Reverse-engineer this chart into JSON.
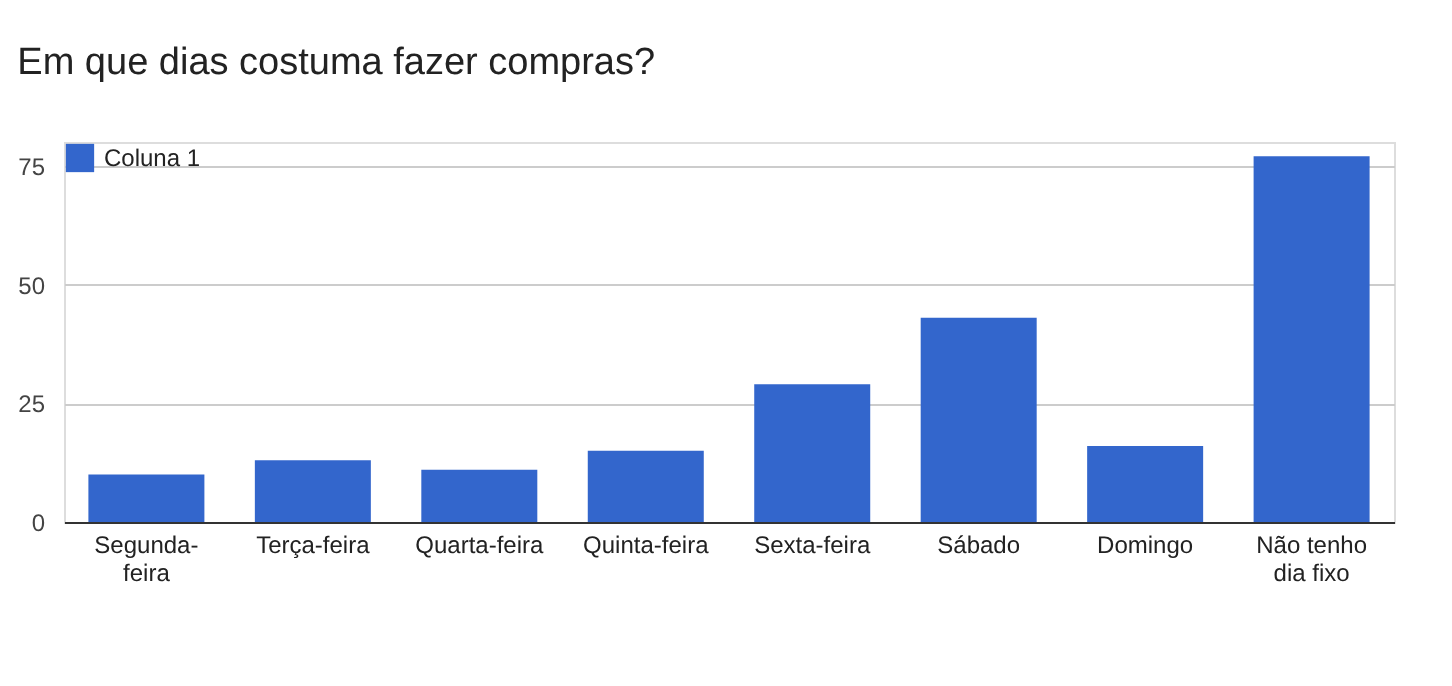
{
  "chart_data": {
    "type": "bar",
    "title": "Em que dias costuma fazer compras?",
    "categories": [
      "Segunda-feira",
      "Terça-feira",
      "Quarta-feira",
      "Quinta-feira",
      "Sexta-feira",
      "Sábado",
      "Domingo",
      "Não tenho dia fixo"
    ],
    "series": [
      {
        "name": "Coluna 1",
        "color": "#3366cc",
        "values": [
          10,
          13,
          11,
          15,
          29,
          43,
          16,
          77
        ]
      }
    ],
    "ylim": [
      0,
      80
    ],
    "yticks": [
      0,
      25,
      50,
      75
    ],
    "grid": "y",
    "legend": "top left"
  }
}
